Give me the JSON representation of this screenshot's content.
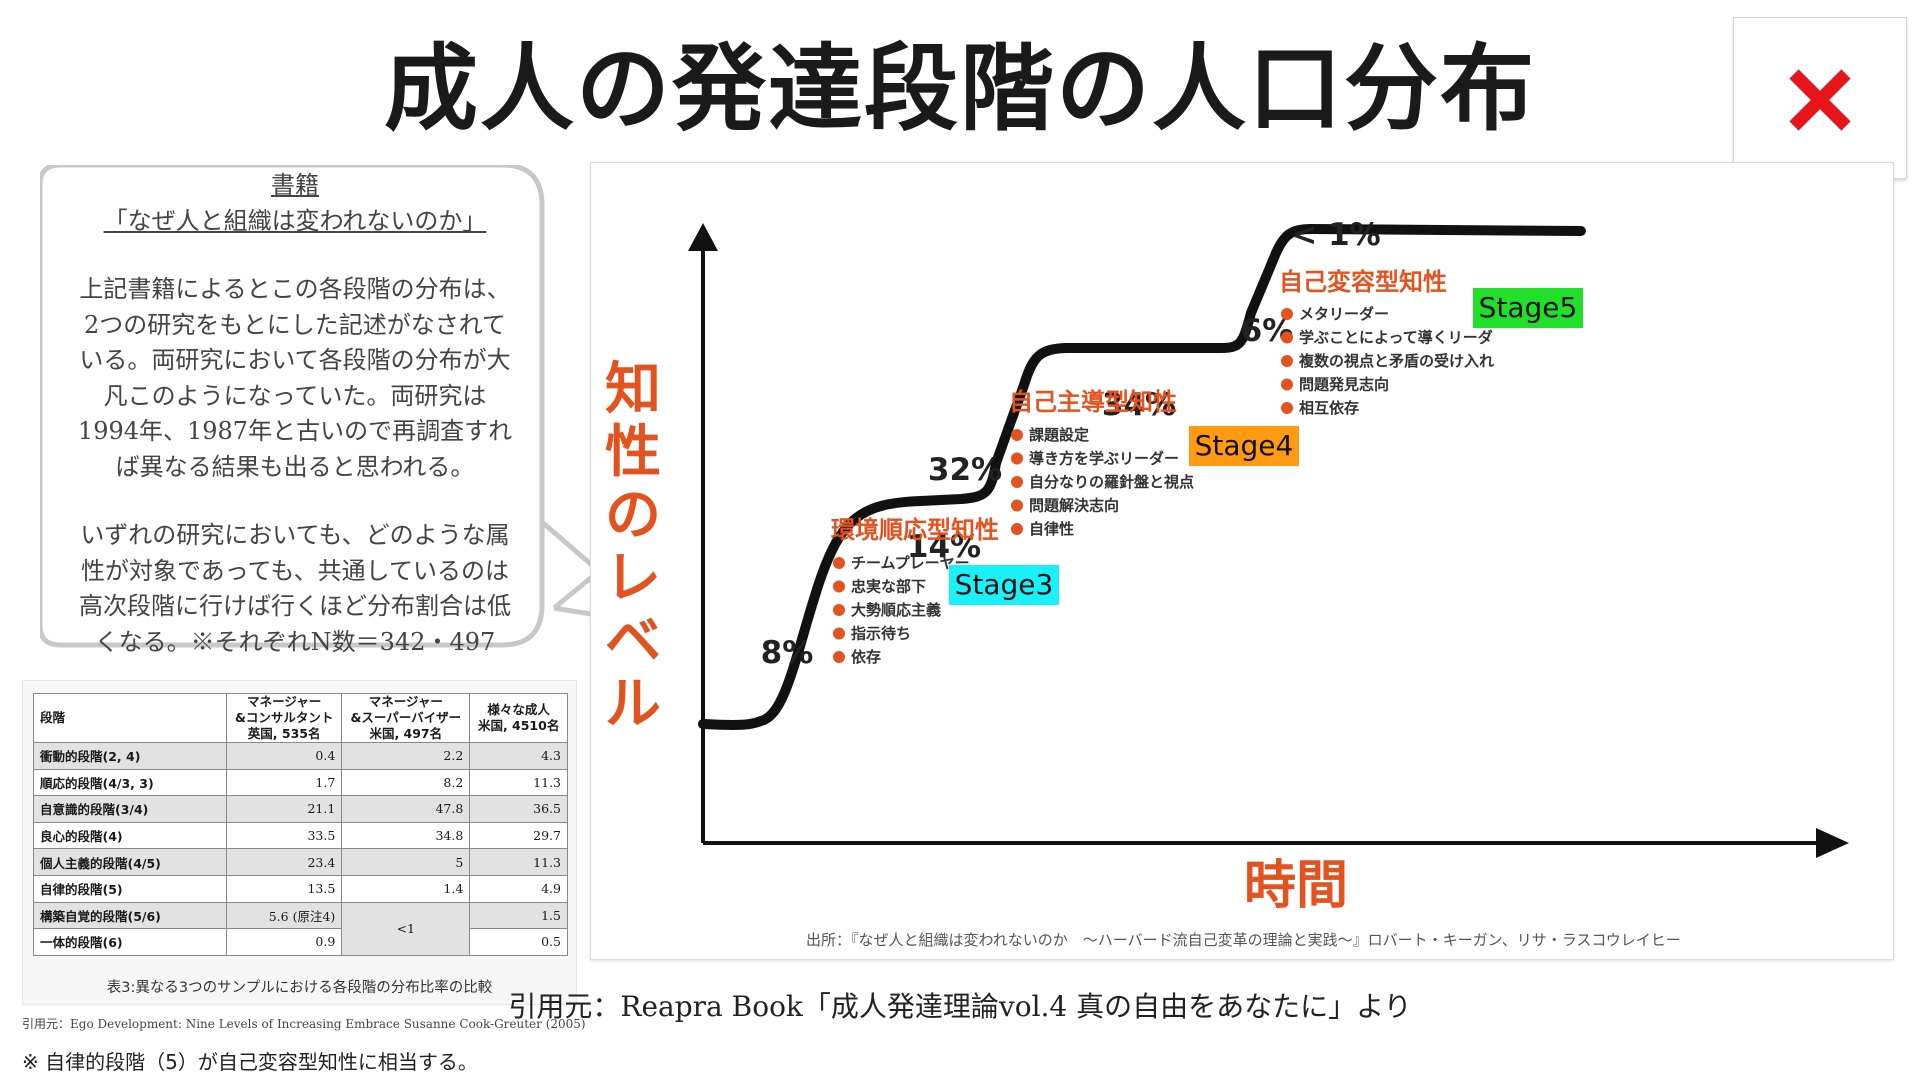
{
  "title": "成人の発達段階の人口分布",
  "close_icon": "close-x-icon",
  "close_color": "#e8141b",
  "bubble": {
    "book_label": "書籍",
    "book_title": "「なぜ人と組織は変われないのか」",
    "para1": [
      "上記書籍によるとこの各段階の分布は、",
      "2つの研究をもとにした記述がなされて",
      "いる。両研究において各段階の分布が大",
      "凡このようになっていた。両研究は",
      "1994年、1987年と古いので再調査すれ",
      "ば異なる結果も出ると思われる。"
    ],
    "para2": [
      "いずれの研究においても、どのような属",
      "性が対象であっても、共通しているのは",
      "高次段階に行けば行くほど分布割合は低",
      "くなる。※それぞれN数＝342・497"
    ]
  },
  "table": {
    "headers": [
      [
        "段階"
      ],
      [
        "マネージャー",
        "&コンサルタント",
        "英国, 535名"
      ],
      [
        "マネージャー",
        "&スーパーバイザー",
        "米国, 497名"
      ],
      [
        "様々な成人",
        "米国, 4510名"
      ]
    ],
    "rows": [
      {
        "name": "衝動的段階(2, 4)",
        "a": "0.4",
        "b": "2.2",
        "c": "4.3"
      },
      {
        "name": "順応的段階(4/3, 3)",
        "a": "1.7",
        "b": "8.2",
        "c": "11.3"
      },
      {
        "name": "自意識的段階(3/4)",
        "a": "21.1",
        "b": "47.8",
        "c": "36.5"
      },
      {
        "name": "良心的段階(4)",
        "a": "33.5",
        "b": "34.8",
        "c": "29.7"
      },
      {
        "name": "個人主義的段階(4/5)",
        "a": "23.4",
        "b": "5",
        "c": "11.3"
      },
      {
        "name": "自律的段階(5)",
        "a": "13.5",
        "b": "1.4",
        "c": "4.9"
      },
      {
        "name": "構築自覚的段階(5/6)",
        "a": "5.6 (原注4)",
        "b": "<1",
        "c": "1.5"
      },
      {
        "name": "一体的段階(6)",
        "a": "0.9",
        "b": "",
        "c": "0.5"
      }
    ],
    "caption": "表3:異なる3つのサンプルにおける各段階の分布比率の比較"
  },
  "table_cite": "引用元：Ego Development: Nine Levels of Increasing Embrace Susanne Cook-Greuter (2005)",
  "note": "※ 自律的段階（5）が自己変容型知性に相当する。",
  "chart_data": {
    "type": "line",
    "ylabel": "知性のレベル",
    "xlabel": "時間",
    "axis_color": "#111111",
    "accent_color": "#e2531f",
    "percent_labels": [
      "8%",
      "14%",
      "32%",
      "34%",
      "6%",
      "< 1%"
    ],
    "stages": [
      {
        "heading": "環境順応型知性",
        "badge": "Stage3",
        "badge_color": "#19f0f7",
        "items": [
          "チームプレーヤー",
          "忠実な部下",
          "大勢順応主義",
          "指示待ち",
          "依存"
        ]
      },
      {
        "heading": "自己主導型知性",
        "badge": "Stage4",
        "badge_color": "#ff9a12",
        "items": [
          "課題設定",
          "導き方を学ぶリーダー",
          "自分なりの羅針盤と視点",
          "問題解決志向",
          "自律性"
        ]
      },
      {
        "heading": "自己変容型知性",
        "badge": "Stage5",
        "badge_color": "#22e02a",
        "items": [
          "メタリーダー",
          "学ぶことによって導くリーダ",
          "複数の視点と矛盾の受け入れ",
          "問題発見志向",
          "相互依存"
        ]
      }
    ],
    "source": "出所：『なぜ人と組織は変われないのか　～ハーバード流自己変革の理論と実践～』ロバート・キーガン、リサ・ラスコウレイヒー"
  },
  "bottom_source": "引用元：Reapra Book「成人発達理論vol.4 真の自由をあなたに」より"
}
